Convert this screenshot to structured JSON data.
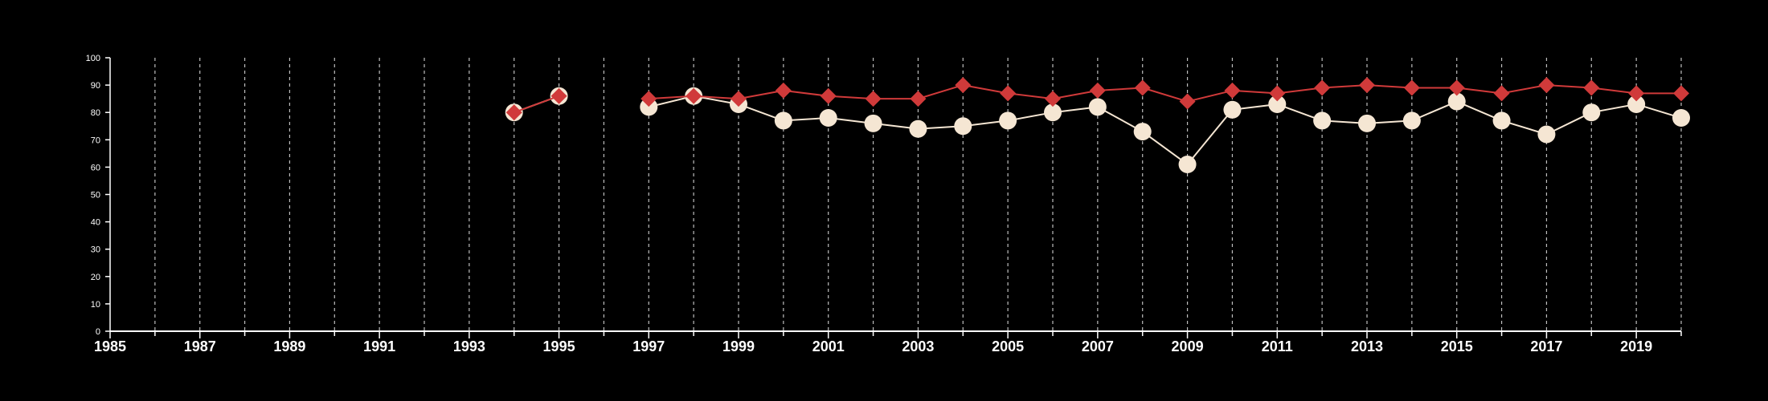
{
  "chart_data": {
    "type": "line",
    "background": "#000000",
    "axis_color": "#ffffff",
    "grid": {
      "vertical": true,
      "style": "dashed",
      "color": "#bdbdbd"
    },
    "xlim": [
      1985,
      2020
    ],
    "ylim": [
      0,
      100
    ],
    "xticks_major": [
      1985,
      1987,
      1989,
      1991,
      1993,
      1995,
      1997,
      1999,
      2001,
      2003,
      2005,
      2007,
      2009,
      2011,
      2013,
      2015,
      2017,
      2019
    ],
    "xtick_labels": [
      "1985",
      "1987",
      "1989",
      "1991",
      "1993",
      "1995",
      "1997",
      "1999",
      "2001",
      "2003",
      "2005",
      "2007",
      "2009",
      "2011",
      "2013",
      "2015",
      "2017",
      "2019"
    ],
    "yticks": [
      0,
      10,
      20,
      30,
      40,
      50,
      60,
      70,
      80,
      90,
      100
    ],
    "ytick_labels": [
      "0",
      "10",
      "20",
      "30",
      "40",
      "50",
      "60",
      "70",
      "80",
      "90",
      "100"
    ],
    "series": [
      {
        "color": "#f5e6d3",
        "marker": "circle",
        "x": [
          1994,
          1995,
          1997,
          1998,
          1999,
          2000,
          2001,
          2002,
          2003,
          2004,
          2005,
          2006,
          2007,
          2008,
          2009,
          2010,
          2011,
          2012,
          2013,
          2014,
          2015,
          2016,
          2017,
          2018,
          2019,
          2020
        ],
        "values": [
          80,
          86,
          82,
          86,
          83,
          77,
          78,
          76,
          74,
          75,
          77,
          80,
          82,
          73,
          61,
          81,
          83,
          77,
          76,
          77,
          84,
          77,
          72,
          80,
          83,
          78
        ]
      },
      {
        "color": "#d03a3a",
        "marker": "diamond",
        "x": [
          1994,
          1995,
          1997,
          1998,
          1999,
          2000,
          2001,
          2002,
          2003,
          2004,
          2005,
          2006,
          2007,
          2008,
          2009,
          2010,
          2011,
          2012,
          2013,
          2014,
          2015,
          2016,
          2017,
          2018,
          2019,
          2020
        ],
        "values": [
          80,
          86,
          85,
          86,
          85,
          88,
          86,
          85,
          85,
          90,
          87,
          85,
          88,
          89,
          84,
          88,
          87,
          89,
          90,
          89,
          89,
          87,
          90,
          89,
          87,
          87
        ]
      }
    ]
  }
}
